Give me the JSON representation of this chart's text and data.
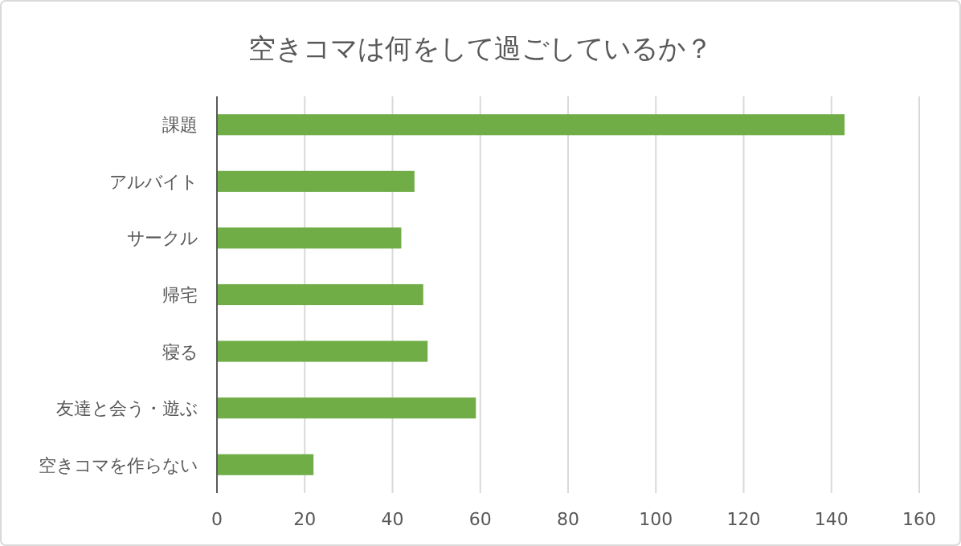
{
  "chart_data": {
    "type": "bar",
    "orientation": "horizontal",
    "title": "空きコマは何をして過ごしているか？",
    "categories": [
      "課題",
      "アルバイト",
      "サークル",
      "帰宅",
      "寝る",
      "友達と会う・遊ぶ",
      "空きコマを作らない"
    ],
    "values": [
      143,
      45,
      42,
      47,
      48,
      59,
      22
    ],
    "color": "#70ad47",
    "xlim": [
      0,
      160
    ],
    "xticks": [
      0,
      20,
      40,
      60,
      80,
      100,
      120,
      140,
      160
    ],
    "grid": "x"
  }
}
